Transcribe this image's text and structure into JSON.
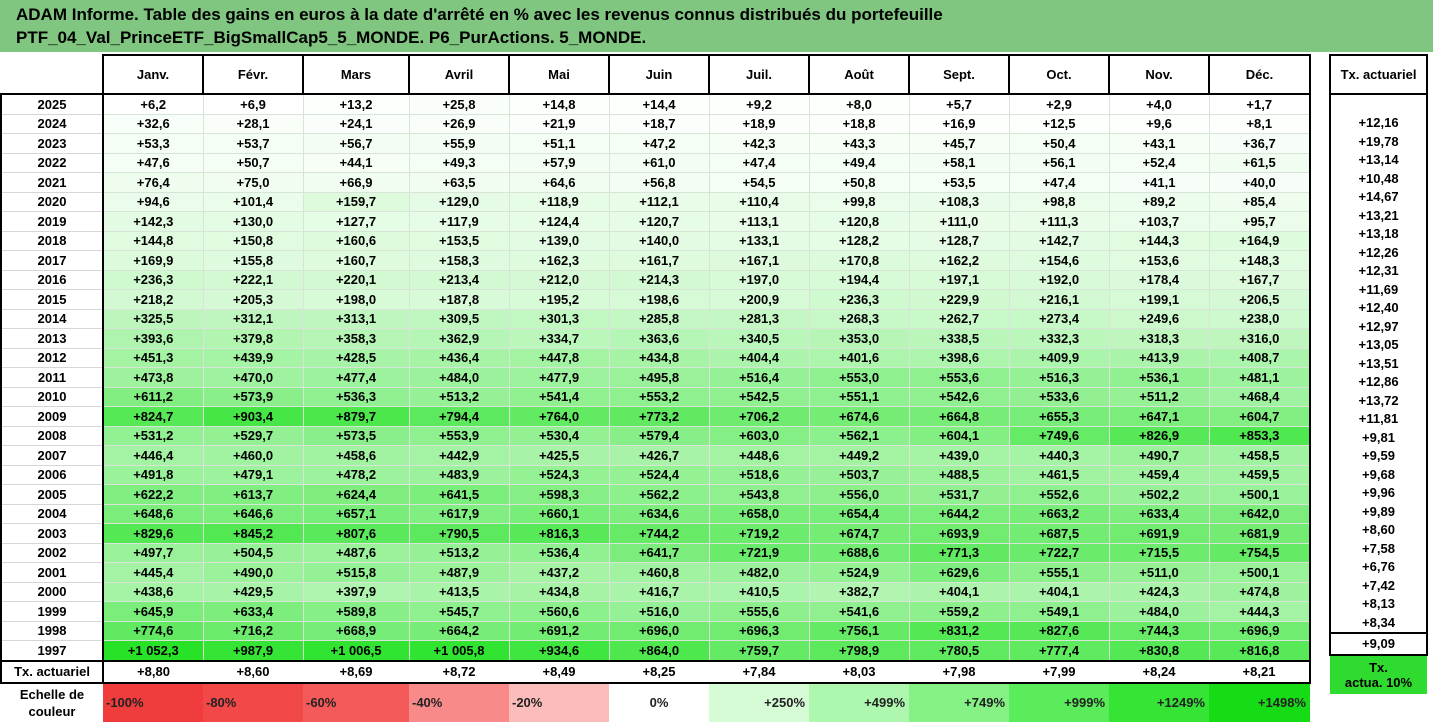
{
  "title": {
    "line1": "ADAM Informe. Table des gains en euros à la date d'arrêté en % avec les revenus connus distribués du portefeuille",
    "line2": "PTF_04_Val_PrinceETF_BigSmallCap5_5_MONDE. P6_PurActions. 5_MONDE."
  },
  "months": [
    "Janv.",
    "Févr.",
    "Mars",
    "Avril",
    "Mai",
    "Juin",
    "Juil.",
    "Août",
    "Sept.",
    "Oct.",
    "Nov.",
    "Déc."
  ],
  "side_header": "Tx. actuariel",
  "rows": [
    {
      "year": "2025",
      "values": [
        "+6,2",
        "+6,9",
        "+13,2",
        "+25,8",
        "+14,8",
        "+14,4",
        "+9,2",
        "+8,0",
        "+5,7",
        "+2,9",
        "+4,0",
        "+1,7"
      ],
      "tx": ""
    },
    {
      "year": "2024",
      "values": [
        "+32,6",
        "+28,1",
        "+24,1",
        "+26,9",
        "+21,9",
        "+18,7",
        "+18,9",
        "+18,8",
        "+16,9",
        "+12,5",
        "+9,6",
        "+8,1"
      ],
      "tx": "+12,16"
    },
    {
      "year": "2023",
      "values": [
        "+53,3",
        "+53,7",
        "+56,7",
        "+55,9",
        "+51,1",
        "+47,2",
        "+42,3",
        "+43,3",
        "+45,7",
        "+50,4",
        "+43,1",
        "+36,7"
      ],
      "tx": "+19,78"
    },
    {
      "year": "2022",
      "values": [
        "+47,6",
        "+50,7",
        "+44,1",
        "+49,3",
        "+57,9",
        "+61,0",
        "+47,4",
        "+49,4",
        "+58,1",
        "+56,1",
        "+52,4",
        "+61,5"
      ],
      "tx": "+13,14"
    },
    {
      "year": "2021",
      "values": [
        "+76,4",
        "+75,0",
        "+66,9",
        "+63,5",
        "+64,6",
        "+56,8",
        "+54,5",
        "+50,8",
        "+53,5",
        "+47,4",
        "+41,1",
        "+40,0"
      ],
      "tx": "+10,48"
    },
    {
      "year": "2020",
      "values": [
        "+94,6",
        "+101,4",
        "+159,7",
        "+129,0",
        "+118,9",
        "+112,1",
        "+110,4",
        "+99,8",
        "+108,3",
        "+98,8",
        "+89,2",
        "+85,4"
      ],
      "tx": "+14,67"
    },
    {
      "year": "2019",
      "values": [
        "+142,3",
        "+130,0",
        "+127,7",
        "+117,9",
        "+124,4",
        "+120,7",
        "+113,1",
        "+120,8",
        "+111,0",
        "+111,3",
        "+103,7",
        "+95,7"
      ],
      "tx": "+13,21"
    },
    {
      "year": "2018",
      "values": [
        "+144,8",
        "+150,8",
        "+160,6",
        "+153,5",
        "+139,0",
        "+140,0",
        "+133,1",
        "+128,2",
        "+128,7",
        "+142,7",
        "+144,3",
        "+164,9"
      ],
      "tx": "+13,18"
    },
    {
      "year": "2017",
      "values": [
        "+169,9",
        "+155,8",
        "+160,7",
        "+158,3",
        "+162,3",
        "+161,7",
        "+167,1",
        "+170,8",
        "+162,2",
        "+154,6",
        "+153,6",
        "+148,3"
      ],
      "tx": "+12,26"
    },
    {
      "year": "2016",
      "values": [
        "+236,3",
        "+222,1",
        "+220,1",
        "+213,4",
        "+212,0",
        "+214,3",
        "+197,0",
        "+194,4",
        "+197,1",
        "+192,0",
        "+178,4",
        "+167,7"
      ],
      "tx": "+12,31"
    },
    {
      "year": "2015",
      "values": [
        "+218,2",
        "+205,3",
        "+198,0",
        "+187,8",
        "+195,2",
        "+198,6",
        "+200,9",
        "+236,3",
        "+229,9",
        "+216,1",
        "+199,1",
        "+206,5"
      ],
      "tx": "+11,69"
    },
    {
      "year": "2014",
      "values": [
        "+325,5",
        "+312,1",
        "+313,1",
        "+309,5",
        "+301,3",
        "+285,8",
        "+281,3",
        "+268,3",
        "+262,7",
        "+273,4",
        "+249,6",
        "+238,0"
      ],
      "tx": "+12,40"
    },
    {
      "year": "2013",
      "values": [
        "+393,6",
        "+379,8",
        "+358,3",
        "+362,9",
        "+334,7",
        "+363,6",
        "+340,5",
        "+353,0",
        "+338,5",
        "+332,3",
        "+318,3",
        "+316,0"
      ],
      "tx": "+12,97"
    },
    {
      "year": "2012",
      "values": [
        "+451,3",
        "+439,9",
        "+428,5",
        "+436,4",
        "+447,8",
        "+434,8",
        "+404,4",
        "+401,6",
        "+398,6",
        "+409,9",
        "+413,9",
        "+408,7"
      ],
      "tx": "+13,05"
    },
    {
      "year": "2011",
      "values": [
        "+473,8",
        "+470,0",
        "+477,4",
        "+484,0",
        "+477,9",
        "+495,8",
        "+516,4",
        "+553,0",
        "+553,6",
        "+516,3",
        "+536,1",
        "+481,1"
      ],
      "tx": "+13,51"
    },
    {
      "year": "2010",
      "values": [
        "+611,2",
        "+573,9",
        "+536,3",
        "+513,2",
        "+541,4",
        "+553,2",
        "+542,5",
        "+551,1",
        "+542,6",
        "+533,6",
        "+511,2",
        "+468,4"
      ],
      "tx": "+12,86"
    },
    {
      "year": "2009",
      "values": [
        "+824,7",
        "+903,4",
        "+879,7",
        "+794,4",
        "+764,0",
        "+773,2",
        "+706,2",
        "+674,6",
        "+664,8",
        "+655,3",
        "+647,1",
        "+604,7"
      ],
      "tx": "+13,72"
    },
    {
      "year": "2008",
      "values": [
        "+531,2",
        "+529,7",
        "+573,5",
        "+553,9",
        "+530,4",
        "+579,4",
        "+603,0",
        "+562,1",
        "+604,1",
        "+749,6",
        "+826,9",
        "+853,3"
      ],
      "tx": "+11,81"
    },
    {
      "year": "2007",
      "values": [
        "+446,4",
        "+460,0",
        "+458,6",
        "+442,9",
        "+425,5",
        "+426,7",
        "+448,6",
        "+449,2",
        "+439,0",
        "+440,3",
        "+490,7",
        "+458,5"
      ],
      "tx": "+9,81"
    },
    {
      "year": "2006",
      "values": [
        "+491,8",
        "+479,1",
        "+478,2",
        "+483,9",
        "+524,3",
        "+524,4",
        "+518,6",
        "+503,7",
        "+488,5",
        "+461,5",
        "+459,4",
        "+459,5"
      ],
      "tx": "+9,59"
    },
    {
      "year": "2005",
      "values": [
        "+622,2",
        "+613,7",
        "+624,4",
        "+641,5",
        "+598,3",
        "+562,2",
        "+543,8",
        "+556,0",
        "+531,7",
        "+552,6",
        "+502,2",
        "+500,1"
      ],
      "tx": "+9,68"
    },
    {
      "year": "2004",
      "values": [
        "+648,6",
        "+646,6",
        "+657,1",
        "+617,9",
        "+660,1",
        "+634,6",
        "+658,0",
        "+654,4",
        "+644,2",
        "+663,2",
        "+633,4",
        "+642,0"
      ],
      "tx": "+9,96"
    },
    {
      "year": "2003",
      "values": [
        "+829,6",
        "+845,2",
        "+807,6",
        "+790,5",
        "+816,3",
        "+744,2",
        "+719,2",
        "+674,7",
        "+693,9",
        "+687,5",
        "+691,9",
        "+681,9"
      ],
      "tx": "+9,89"
    },
    {
      "year": "2002",
      "values": [
        "+497,7",
        "+504,5",
        "+487,6",
        "+513,2",
        "+536,4",
        "+641,7",
        "+721,9",
        "+688,6",
        "+771,3",
        "+722,7",
        "+715,5",
        "+754,5"
      ],
      "tx": "+8,60"
    },
    {
      "year": "2001",
      "values": [
        "+445,4",
        "+490,0",
        "+515,8",
        "+487,9",
        "+437,2",
        "+460,8",
        "+482,0",
        "+524,9",
        "+629,6",
        "+555,1",
        "+511,0",
        "+500,1"
      ],
      "tx": "+7,58"
    },
    {
      "year": "2000",
      "values": [
        "+438,6",
        "+429,5",
        "+397,9",
        "+413,5",
        "+434,8",
        "+416,7",
        "+410,5",
        "+382,7",
        "+404,1",
        "+404,1",
        "+424,3",
        "+474,8"
      ],
      "tx": "+6,76"
    },
    {
      "year": "1999",
      "values": [
        "+645,9",
        "+633,4",
        "+589,8",
        "+545,7",
        "+560,6",
        "+516,0",
        "+555,6",
        "+541,6",
        "+559,2",
        "+549,1",
        "+484,0",
        "+444,3"
      ],
      "tx": "+7,42"
    },
    {
      "year": "1998",
      "values": [
        "+774,6",
        "+716,2",
        "+668,9",
        "+664,2",
        "+691,2",
        "+696,0",
        "+696,3",
        "+756,1",
        "+831,2",
        "+827,6",
        "+744,3",
        "+696,9"
      ],
      "tx": "+8,13"
    },
    {
      "year": "1997",
      "values": [
        "+1 052,3",
        "+987,9",
        "+1 006,5",
        "+1 005,8",
        "+934,6",
        "+864,0",
        "+759,7",
        "+798,9",
        "+780,5",
        "+777,4",
        "+830,8",
        "+816,8"
      ],
      "tx": "+8,34"
    }
  ],
  "tx_row": {
    "label": "Tx. actuariel",
    "values": [
      "+8,80",
      "+8,60",
      "+8,69",
      "+8,72",
      "+8,49",
      "+8,25",
      "+7,84",
      "+8,03",
      "+7,98",
      "+7,99",
      "+8,24",
      "+8,21"
    ],
    "side": "+9,09"
  },
  "scale": {
    "label_line1": "Echelle de",
    "label_line2": "couleur",
    "cells": [
      {
        "text": "-100%",
        "color": "#f03c3c",
        "kind": "neg"
      },
      {
        "text": "-80%",
        "color": "#f24848",
        "kind": "neg"
      },
      {
        "text": "-60%",
        "color": "#f45a5a",
        "kind": "neg"
      },
      {
        "text": "-40%",
        "color": "#f88a8a",
        "kind": "neg"
      },
      {
        "text": "-20%",
        "color": "#fbbcbc",
        "kind": "neg"
      },
      {
        "text": "0%",
        "color": "#ffffff",
        "kind": "zero"
      },
      {
        "text": "+250%",
        "color": "#d6fcd6",
        "kind": "pos"
      },
      {
        "text": "+499%",
        "color": "#aef7ae",
        "kind": "pos"
      },
      {
        "text": "+749%",
        "color": "#86f286",
        "kind": "pos"
      },
      {
        "text": "+999%",
        "color": "#5aec5a",
        "kind": "pos"
      },
      {
        "text": "+1249%",
        "color": "#36e436",
        "kind": "pos"
      },
      {
        "text": "+1498%",
        "color": "#16dc16",
        "kind": "pos"
      }
    ],
    "side_line1": "Tx.",
    "side_line2": "actua. 10%",
    "side_color": "#2edb2e"
  },
  "colors": {
    "title_bg": "#80c680",
    "scale_zero": "#ffffff",
    "scale_max": "#16dc16"
  }
}
